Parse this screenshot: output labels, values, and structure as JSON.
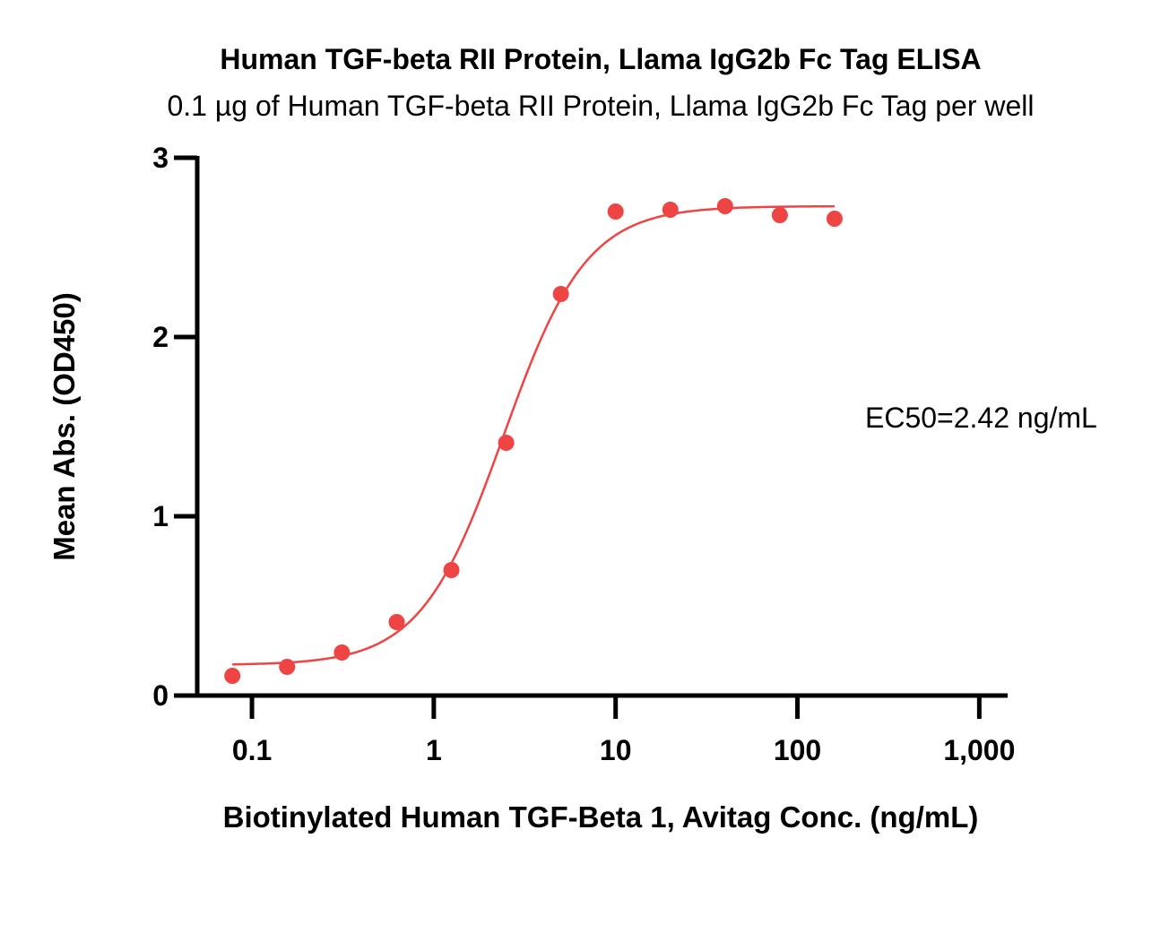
{
  "chart_data": {
    "type": "scatter",
    "title": "Human TGF-beta RII Protein, Llama IgG2b Fc Tag ELISA",
    "subtitle": "0.1 µg of Human TGF-beta RII Protein, Llama IgG2b Fc Tag per well",
    "xlabel": "Biotinylated Human TGF-Beta 1, Avitag Conc. (ng/mL)",
    "ylabel": "Mean Abs. (OD450)",
    "x_scale": "log",
    "xlim": [
      0.05,
      1400
    ],
    "ylim": [
      0,
      3
    ],
    "x_ticks": [
      {
        "value": 0.1,
        "label": "0.1"
      },
      {
        "value": 1,
        "label": "1"
      },
      {
        "value": 10,
        "label": "10"
      },
      {
        "value": 100,
        "label": "100"
      },
      {
        "value": 1000,
        "label": "1,000"
      }
    ],
    "y_ticks": [
      {
        "value": 0,
        "label": "0"
      },
      {
        "value": 1,
        "label": "1"
      },
      {
        "value": 2,
        "label": "2"
      },
      {
        "value": 3,
        "label": "3"
      }
    ],
    "grid": false,
    "color": "#ef4444",
    "series": [
      {
        "x": [
          0.078,
          0.156,
          0.3125,
          0.625,
          1.25,
          2.5,
          5,
          10,
          20,
          40,
          80,
          160
        ],
        "y": [
          0.11,
          0.16,
          0.24,
          0.41,
          0.7,
          1.41,
          2.24,
          2.7,
          2.71,
          2.73,
          2.68,
          2.66
        ]
      }
    ],
    "fit": {
      "model": "4PL",
      "bottom": 0.17,
      "top": 2.73,
      "ec50": 2.42,
      "hill": 1.9,
      "x_range": [
        0.078,
        160
      ]
    },
    "annotation": "EC50=2.42 ng/mL"
  }
}
